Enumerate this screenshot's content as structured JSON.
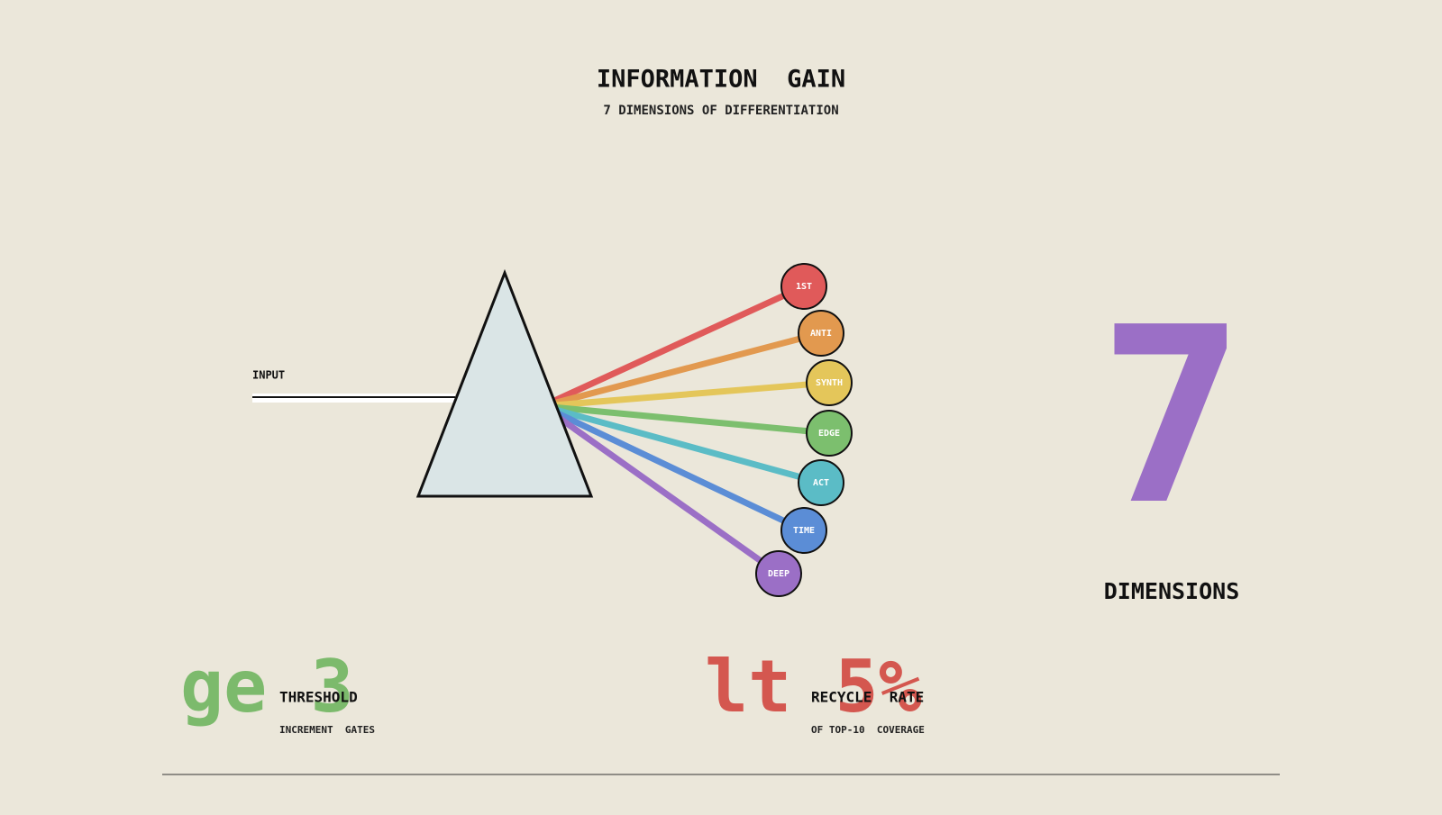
{
  "header": {
    "title": "INFORMATION  GAIN",
    "subtitle": "7 DIMENSIONS OF DIFFERENTIATION"
  },
  "input_label": "INPUT",
  "nodes": [
    {
      "label": "1ST",
      "color": "#e05a5a"
    },
    {
      "label": "ANTI",
      "color": "#e2994f"
    },
    {
      "label": "SYNTH",
      "color": "#e4c65a"
    },
    {
      "label": "EDGE",
      "color": "#7cbf6e"
    },
    {
      "label": "ACT",
      "color": "#5bbcc6"
    },
    {
      "label": "TIME",
      "color": "#5b8dd6"
    },
    {
      "label": "DEEP",
      "color": "#9b6fc6"
    }
  ],
  "highlight": {
    "value": "7",
    "label": "DIMENSIONS",
    "color": "#9b6fc6"
  },
  "stats": [
    {
      "value": "ge 3",
      "label": "THRESHOLD",
      "sub": "INCREMENT  GATES",
      "color": "#7cba6c"
    },
    {
      "value": "lt 5%",
      "label": "RECYCLE  RATE",
      "sub": "OF TOP-10  COVERAGE",
      "color": "#d4574f"
    }
  ]
}
